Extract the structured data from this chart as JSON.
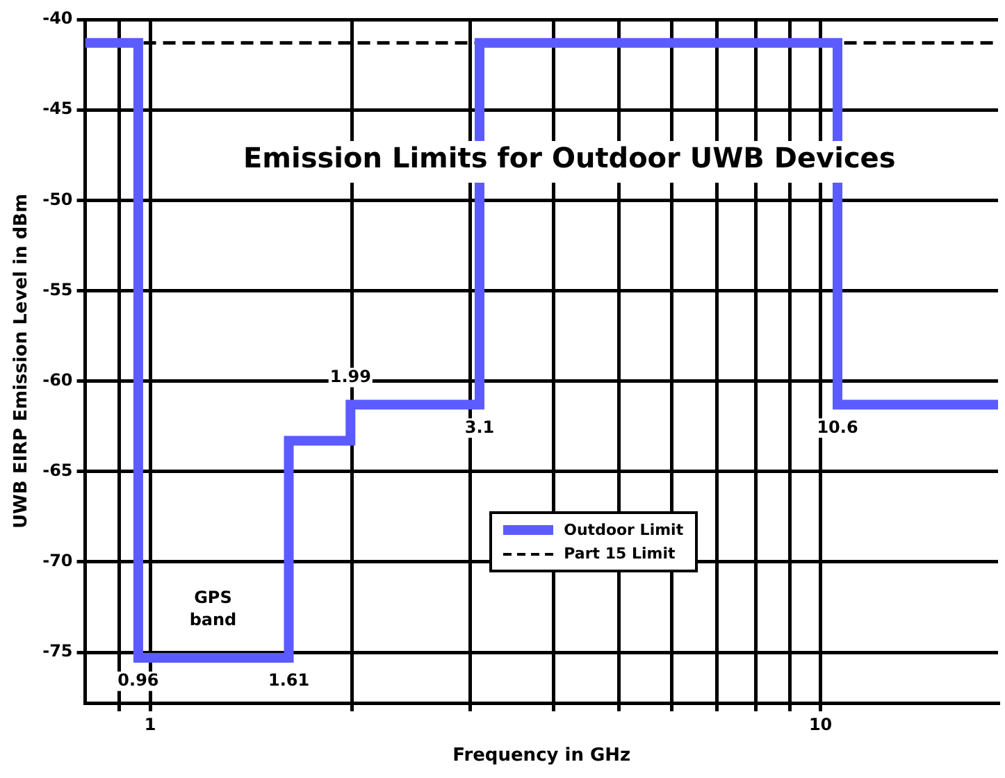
{
  "chart_data": {
    "type": "step",
    "title": "Emission Limits for Outdoor UWB Devices",
    "xlabel": "Frequency in GHz",
    "ylabel": "UWB EIRP Emission Level in dBm",
    "series": [
      {
        "name": "Outdoor Limit",
        "color": "#5b5bff",
        "x": [
          0.8,
          0.96,
          1.61,
          1.99,
          3.1,
          10.6,
          18.4
        ],
        "values": [
          -41.3,
          -75.3,
          -63.3,
          -61.3,
          -41.3,
          -61.3,
          -61.3
        ]
      },
      {
        "name": "Part 15 Limit",
        "type": "line",
        "color": "#000000",
        "line_style": "dashed",
        "x": [
          0.8,
          18.4
        ],
        "values": [
          -41.3,
          -41.3
        ]
      }
    ],
    "annotations": [
      {
        "text": "0.96",
        "x": 0.96,
        "y": -76.6
      },
      {
        "text": "1.61",
        "x": 1.61,
        "y": -76.6
      },
      {
        "text": "1.99",
        "x": 1.99,
        "y": -59.8
      },
      {
        "text": "3.1",
        "x": 3.1,
        "y": -62.6
      },
      {
        "text": "10.6",
        "x": 10.6,
        "y": -62.6
      },
      "GPS band"
    ],
    "log": "x",
    "xlim": [
      0.8,
      18.4
    ],
    "xticks": [
      {
        "value": 0.9,
        "label": null
      },
      1,
      {
        "value": 2,
        "label": null
      },
      {
        "value": 3,
        "label": null
      },
      {
        "value": 4,
        "label": null
      },
      {
        "value": 5,
        "label": null
      },
      {
        "value": 6,
        "label": null
      },
      {
        "value": 7,
        "label": null
      },
      {
        "value": 8,
        "label": null
      },
      {
        "value": 9,
        "label": null
      },
      10
    ],
    "ylim": [
      -77.8,
      -40
    ],
    "yticks": [
      -40,
      -45,
      -50,
      -55,
      -60,
      -65,
      -70,
      -75
    ],
    "grid": true,
    "legend": "bottom right"
  }
}
